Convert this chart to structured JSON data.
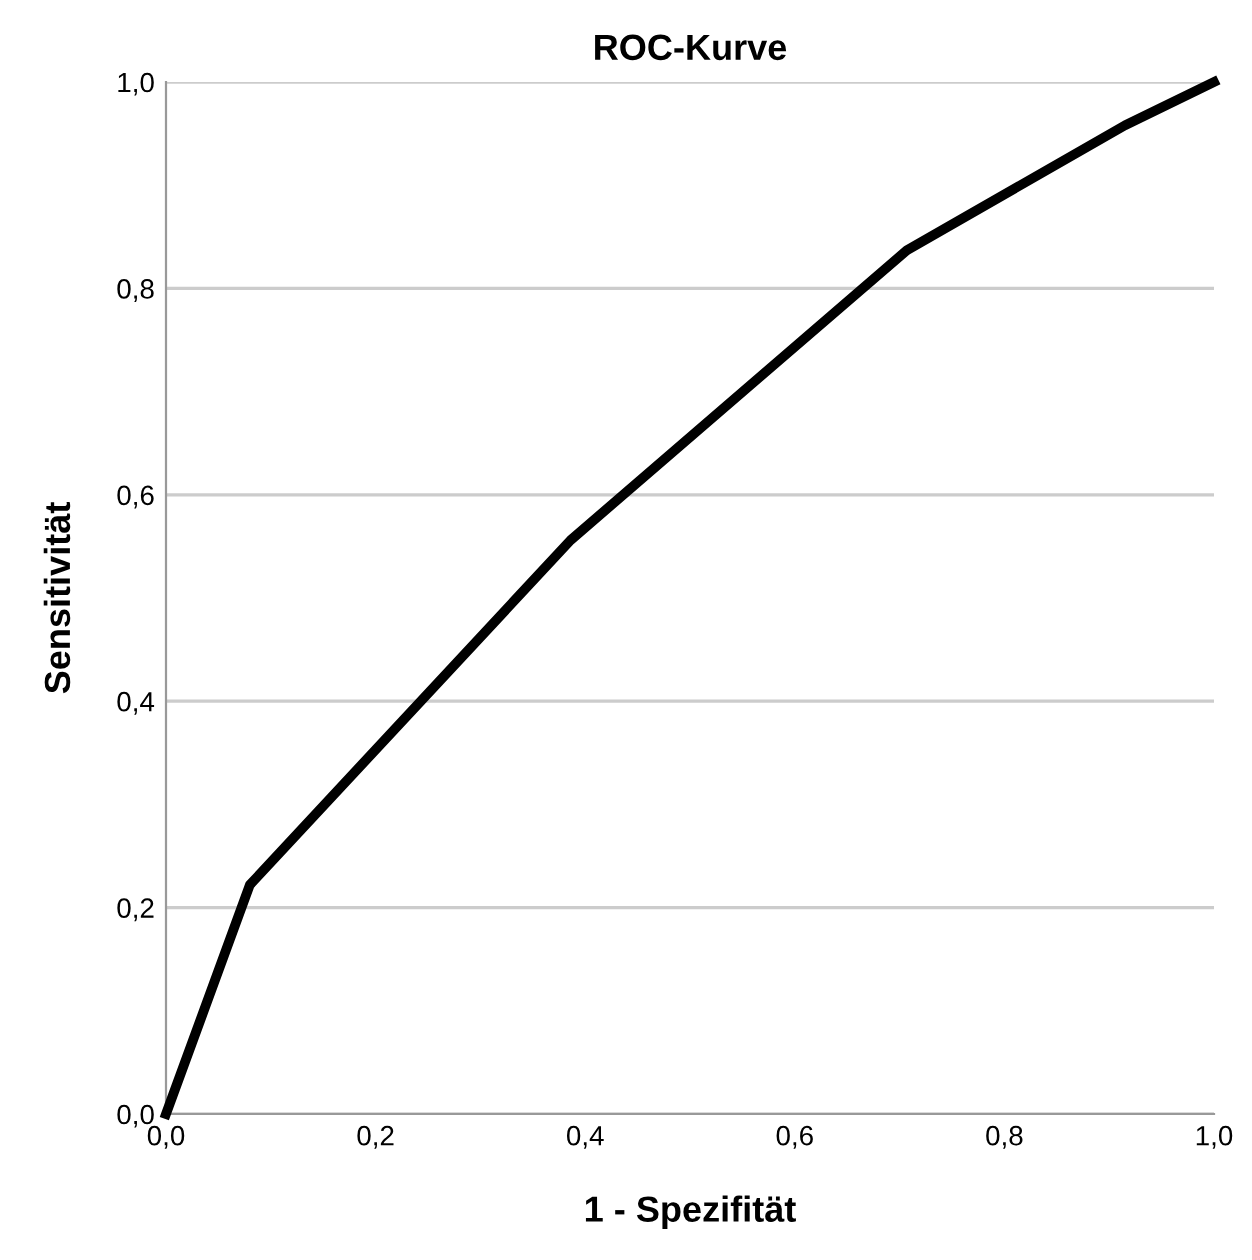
{
  "chart_data": {
    "type": "line",
    "title": "ROC-Kurve",
    "xlabel": "1 - Spezifität",
    "ylabel": "Sensitivität",
    "x": [
      0,
      0.08,
      0.386,
      0.707,
      0.915,
      1.0
    ],
    "series": [
      {
        "color": "#000000",
        "values": [
          0,
          0.222,
          0.556,
          0.837,
          0.958,
          1.0
        ]
      }
    ],
    "xlim": [
      0,
      1
    ],
    "ylim": [
      0,
      1
    ],
    "xticks": [
      {
        "value": 0,
        "label": "0,0"
      },
      {
        "value": 0.2,
        "label": "0,2"
      },
      {
        "value": 0.4,
        "label": "0,4"
      },
      {
        "value": 0.6,
        "label": "0,6"
      },
      {
        "value": 0.8,
        "label": "0,8"
      },
      {
        "value": 1.0,
        "label": "1,0"
      }
    ],
    "yticks": [
      {
        "value": 0,
        "label": "0,0"
      },
      {
        "value": 0.2,
        "label": "0,2"
      },
      {
        "value": 0.4,
        "label": "0,4"
      },
      {
        "value": 0.6,
        "label": "0,6"
      },
      {
        "value": 0.8,
        "label": "0,8"
      },
      {
        "value": 1.0,
        "label": "1,0"
      }
    ],
    "grid": "y",
    "line_style": "solid",
    "marker": "none"
  }
}
